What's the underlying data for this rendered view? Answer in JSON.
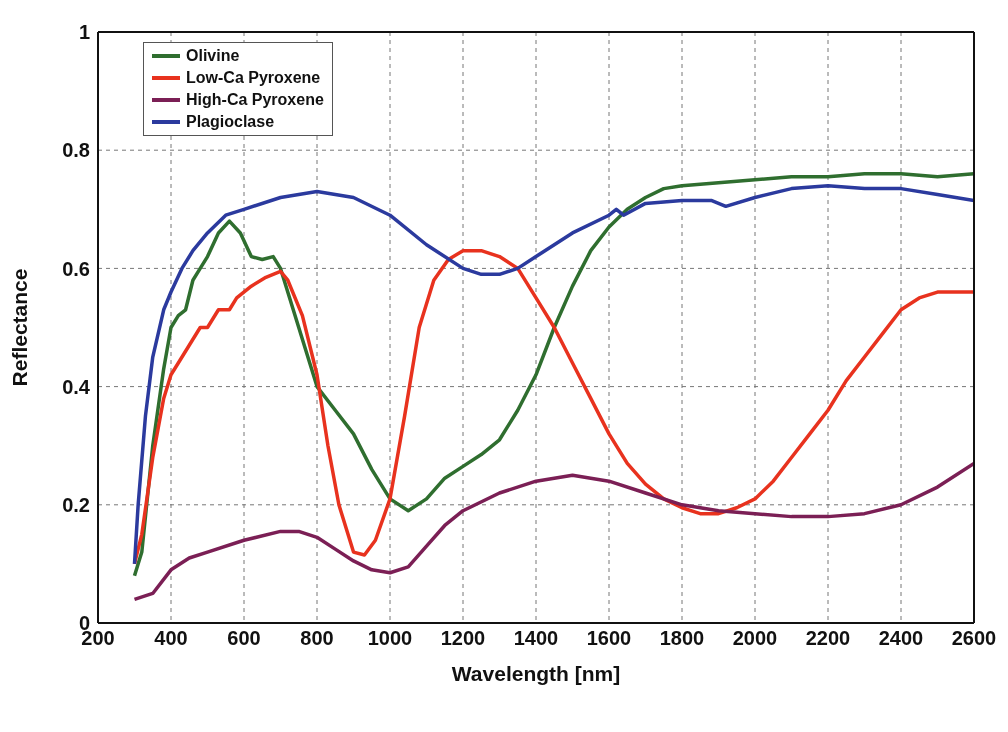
{
  "chart_data": {
    "type": "line",
    "xlabel": "Wavelength [nm]",
    "ylabel": "Reflectance",
    "xlim": [
      200,
      2600
    ],
    "xticks": [
      200,
      400,
      600,
      800,
      1000,
      1200,
      1400,
      1600,
      1800,
      2000,
      2200,
      2400,
      2600
    ],
    "ylim": [
      0,
      1
    ],
    "yticks": [
      0,
      0.2,
      0.4,
      0.6,
      0.8,
      1
    ],
    "grid": true,
    "legend": "top left",
    "line_style": "solid",
    "marker": "none",
    "series": [
      {
        "name": "Olivine",
        "color": "#2f6e2f",
        "x": [
          300,
          320,
          350,
          380,
          400,
          420,
          440,
          460,
          480,
          500,
          530,
          560,
          590,
          620,
          650,
          680,
          700,
          750,
          800,
          850,
          900,
          950,
          1000,
          1050,
          1100,
          1150,
          1200,
          1250,
          1300,
          1350,
          1400,
          1450,
          1500,
          1550,
          1600,
          1650,
          1700,
          1750,
          1800,
          1900,
          2000,
          2100,
          2200,
          2300,
          2400,
          2500,
          2600
        ],
        "values": [
          0.08,
          0.12,
          0.3,
          0.43,
          0.5,
          0.52,
          0.53,
          0.58,
          0.6,
          0.62,
          0.66,
          0.68,
          0.66,
          0.62,
          0.615,
          0.62,
          0.6,
          0.5,
          0.4,
          0.36,
          0.32,
          0.26,
          0.21,
          0.19,
          0.21,
          0.245,
          0.265,
          0.285,
          0.31,
          0.36,
          0.42,
          0.5,
          0.57,
          0.63,
          0.67,
          0.7,
          0.72,
          0.735,
          0.74,
          0.745,
          0.75,
          0.755,
          0.755,
          0.76,
          0.76,
          0.755,
          0.76
        ]
      },
      {
        "name": "Low-Ca Pyroxene",
        "color": "#e8321e",
        "x": [
          300,
          320,
          350,
          380,
          400,
          420,
          450,
          480,
          500,
          530,
          560,
          580,
          620,
          660,
          700,
          720,
          760,
          800,
          830,
          860,
          900,
          930,
          960,
          1000,
          1040,
          1080,
          1120,
          1160,
          1200,
          1250,
          1300,
          1350,
          1400,
          1450,
          1500,
          1550,
          1600,
          1650,
          1700,
          1750,
          1800,
          1850,
          1900,
          1950,
          2000,
          2050,
          2100,
          2150,
          2200,
          2250,
          2300,
          2350,
          2400,
          2450,
          2500,
          2600
        ],
        "values": [
          0.1,
          0.15,
          0.28,
          0.38,
          0.42,
          0.44,
          0.47,
          0.5,
          0.5,
          0.53,
          0.53,
          0.55,
          0.57,
          0.585,
          0.595,
          0.58,
          0.52,
          0.42,
          0.3,
          0.2,
          0.12,
          0.115,
          0.14,
          0.21,
          0.35,
          0.5,
          0.58,
          0.615,
          0.63,
          0.63,
          0.62,
          0.6,
          0.55,
          0.5,
          0.44,
          0.38,
          0.32,
          0.27,
          0.235,
          0.21,
          0.195,
          0.185,
          0.185,
          0.195,
          0.21,
          0.24,
          0.28,
          0.32,
          0.36,
          0.41,
          0.45,
          0.49,
          0.53,
          0.55,
          0.56,
          0.56
        ]
      },
      {
        "name": "High-Ca Pyroxene",
        "color": "#7b1f55",
        "x": [
          300,
          350,
          400,
          450,
          500,
          600,
          700,
          750,
          800,
          850,
          900,
          950,
          1000,
          1050,
          1100,
          1150,
          1200,
          1300,
          1400,
          1500,
          1600,
          1700,
          1800,
          1900,
          2000,
          2100,
          2200,
          2300,
          2400,
          2500,
          2600
        ],
        "values": [
          0.04,
          0.05,
          0.09,
          0.11,
          0.12,
          0.14,
          0.155,
          0.155,
          0.145,
          0.125,
          0.105,
          0.09,
          0.085,
          0.095,
          0.13,
          0.165,
          0.19,
          0.22,
          0.24,
          0.25,
          0.24,
          0.22,
          0.2,
          0.19,
          0.185,
          0.18,
          0.18,
          0.185,
          0.2,
          0.23,
          0.27
        ]
      },
      {
        "name": "Plagioclase",
        "color": "#2b3a9e",
        "x": [
          300,
          310,
          330,
          350,
          380,
          400,
          430,
          460,
          500,
          550,
          600,
          700,
          800,
          900,
          1000,
          1100,
          1200,
          1250,
          1300,
          1350,
          1400,
          1500,
          1600,
          1620,
          1640,
          1700,
          1800,
          1880,
          1920,
          2000,
          2100,
          2200,
          2300,
          2400,
          2500,
          2600
        ],
        "values": [
          0.1,
          0.2,
          0.35,
          0.45,
          0.53,
          0.56,
          0.6,
          0.63,
          0.66,
          0.69,
          0.7,
          0.72,
          0.73,
          0.72,
          0.69,
          0.64,
          0.6,
          0.59,
          0.59,
          0.6,
          0.62,
          0.66,
          0.69,
          0.7,
          0.69,
          0.71,
          0.715,
          0.715,
          0.705,
          0.72,
          0.735,
          0.74,
          0.735,
          0.735,
          0.725,
          0.715
        ]
      }
    ]
  }
}
